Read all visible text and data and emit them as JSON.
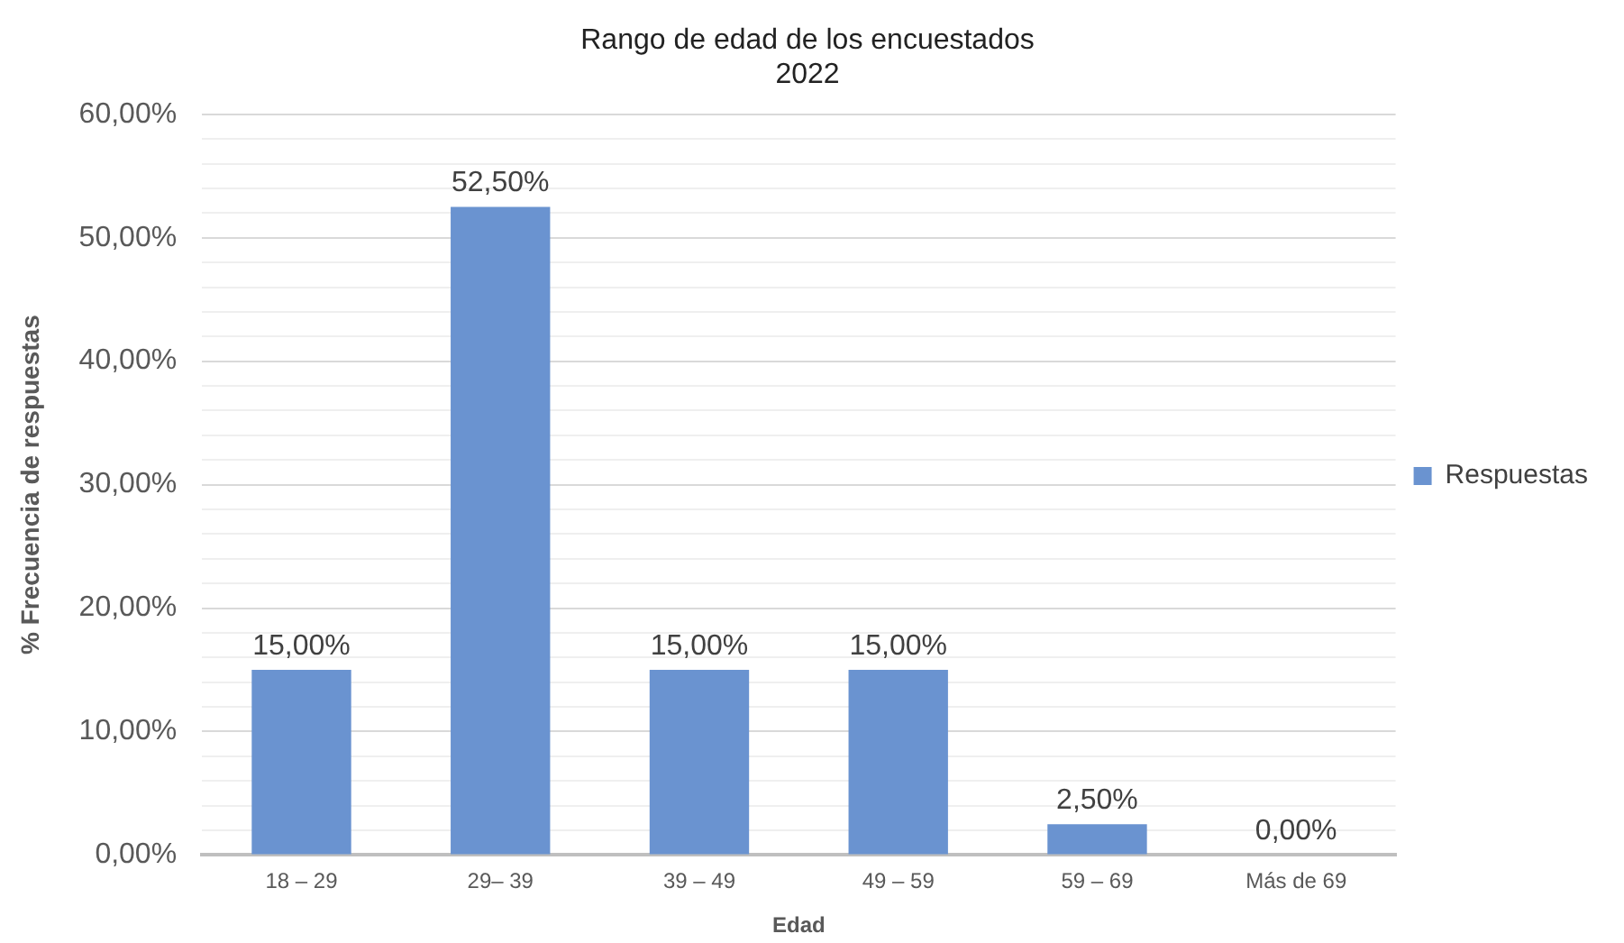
{
  "chart_data": {
    "type": "bar",
    "title": "Rango de edad de los encuestados\n2022",
    "xlabel": "Edad",
    "ylabel": "% Frecuencia de respuestas",
    "categories": [
      "18 – 29",
      "29– 39",
      "39 – 49",
      "49 – 59",
      "59 – 69",
      "Más de 69"
    ],
    "series": [
      {
        "name": "Respuestas",
        "color": "#6a93d0",
        "values": [
          15,
          52.5,
          15,
          15,
          2.5,
          0
        ],
        "value_labels": [
          "15,00%",
          "52,50%",
          "15,00%",
          "15,00%",
          "2,50%",
          "0,00%"
        ]
      }
    ],
    "ylim": [
      0,
      60
    ],
    "yticks": [
      {
        "value": 0,
        "label": "0,00%"
      },
      {
        "value": 2,
        "label": null
      },
      {
        "value": 4,
        "label": null
      },
      {
        "value": 6,
        "label": null
      },
      {
        "value": 8,
        "label": null
      },
      {
        "value": 10,
        "label": "10,00%"
      },
      {
        "value": 12,
        "label": null
      },
      {
        "value": 14,
        "label": null
      },
      {
        "value": 16,
        "label": null
      },
      {
        "value": 18,
        "label": null
      },
      {
        "value": 20,
        "label": "20,00%"
      },
      {
        "value": 22,
        "label": null
      },
      {
        "value": 24,
        "label": null
      },
      {
        "value": 26,
        "label": null
      },
      {
        "value": 28,
        "label": null
      },
      {
        "value": 30,
        "label": "30,00%"
      },
      {
        "value": 32,
        "label": null
      },
      {
        "value": 34,
        "label": null
      },
      {
        "value": 36,
        "label": null
      },
      {
        "value": 38,
        "label": null
      },
      {
        "value": 40,
        "label": "40,00%"
      },
      {
        "value": 42,
        "label": null
      },
      {
        "value": 44,
        "label": null
      },
      {
        "value": 46,
        "label": null
      },
      {
        "value": 48,
        "label": null
      },
      {
        "value": 50,
        "label": "50,00%"
      },
      {
        "value": 52,
        "label": null
      },
      {
        "value": 54,
        "label": null
      },
      {
        "value": 56,
        "label": null
      },
      {
        "value": 58,
        "label": null
      },
      {
        "value": 60,
        "label": "60,00%"
      }
    ],
    "grid": "y",
    "legend": "right"
  }
}
